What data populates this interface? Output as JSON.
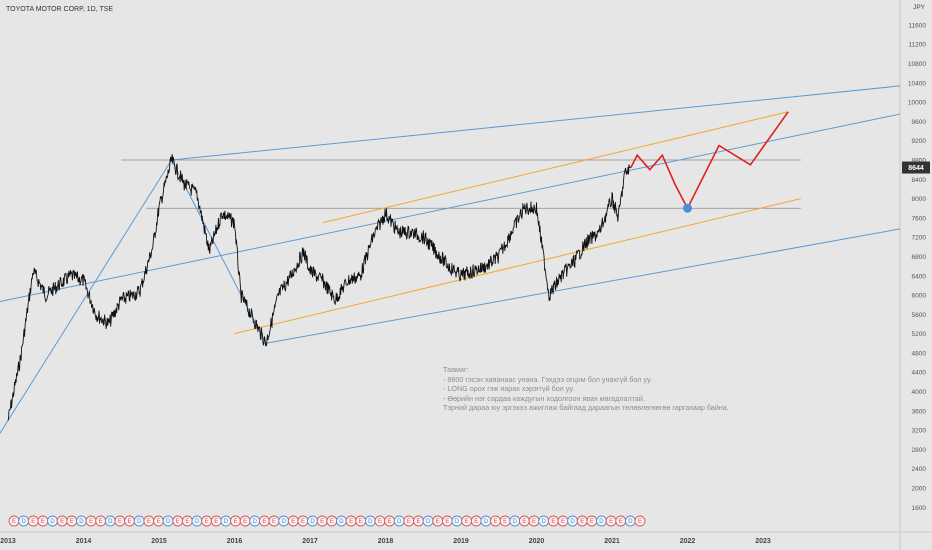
{
  "header": {
    "symbol_title": "TOYOTA MOTOR CORP, 1D, TSE",
    "currency": "JPY"
  },
  "chart_data": {
    "type": "line",
    "title": "TOYOTA MOTOR CORP, 1D, TSE",
    "ylabel": "JPY",
    "ylim": [
      1500,
      11800
    ],
    "y_ticks": [
      1600,
      2000,
      2400,
      2800,
      3200,
      3600,
      4000,
      4400,
      4800,
      5200,
      5600,
      6000,
      6400,
      6800,
      7200,
      7600,
      8000,
      8400,
      8800,
      9200,
      9600,
      10000,
      10400,
      10800,
      11200,
      11600
    ],
    "x_ticks": [
      "2013",
      "2014",
      "2015",
      "2016",
      "2017",
      "2018",
      "2019",
      "2020",
      "2021",
      "2022",
      "2023"
    ],
    "current_price": "8644",
    "series": [
      {
        "values": [
          [
            "2013-01",
            3400
          ],
          [
            "2013-03",
            4700
          ],
          [
            "2013-05",
            6500
          ],
          [
            "2013-07",
            6000
          ],
          [
            "2013-09",
            6200
          ],
          [
            "2013-11",
            6400
          ],
          [
            "2014-01",
            6300
          ],
          [
            "2014-03",
            5600
          ],
          [
            "2014-05",
            5400
          ],
          [
            "2014-07",
            5900
          ],
          [
            "2014-09",
            6000
          ],
          [
            "2014-10",
            6100
          ],
          [
            "2014-12",
            7000
          ],
          [
            "2015-01",
            7800
          ],
          [
            "2015-03",
            8800
          ],
          [
            "2015-05",
            8300
          ],
          [
            "2015-07",
            8100
          ],
          [
            "2015-09",
            6900
          ],
          [
            "2015-11",
            7700
          ],
          [
            "2016-01",
            7500
          ],
          [
            "2016-02",
            6000
          ],
          [
            "2016-04",
            5500
          ],
          [
            "2016-06",
            5000
          ],
          [
            "2016-08",
            6000
          ],
          [
            "2016-10",
            6400
          ],
          [
            "2016-12",
            6900
          ],
          [
            "2017-01",
            6500
          ],
          [
            "2017-03",
            6300
          ],
          [
            "2017-05",
            5900
          ],
          [
            "2017-07",
            6300
          ],
          [
            "2017-09",
            6400
          ],
          [
            "2017-11",
            7200
          ],
          [
            "2018-01",
            7700
          ],
          [
            "2018-03",
            7300
          ],
          [
            "2018-05",
            7300
          ],
          [
            "2018-07",
            7200
          ],
          [
            "2018-09",
            6900
          ],
          [
            "2018-11",
            6600
          ],
          [
            "2019-01",
            6400
          ],
          [
            "2019-03",
            6500
          ],
          [
            "2019-05",
            6600
          ],
          [
            "2019-07",
            6800
          ],
          [
            "2019-09",
            7300
          ],
          [
            "2019-11",
            7800
          ],
          [
            "2020-01",
            7800
          ],
          [
            "2020-03",
            6000
          ],
          [
            "2020-05",
            6400
          ],
          [
            "2020-07",
            6700
          ],
          [
            "2020-09",
            7100
          ],
          [
            "2020-11",
            7300
          ],
          [
            "2021-01",
            8000
          ],
          [
            "2021-02",
            7600
          ],
          [
            "2021-03",
            8500
          ],
          [
            "2021-04",
            8644
          ]
        ]
      }
    ],
    "projection_path": [
      [
        "2021-04",
        8644
      ],
      [
        "2021-05",
        8900
      ],
      [
        "2021-07",
        8600
      ],
      [
        "2021-09",
        8900
      ],
      [
        "2021-11",
        8300
      ],
      [
        "2022-01",
        7800
      ],
      [
        "2022-06",
        9100
      ],
      [
        "2022-11",
        8700
      ],
      [
        "2023-05",
        9800
      ]
    ],
    "target_point": [
      "2022-01",
      7800
    ],
    "horizontal_levels": [
      8800,
      7800
    ],
    "event_markers": {
      "labels": [
        "E",
        "D",
        "E",
        "E",
        "D",
        "E",
        "E",
        "D",
        "E",
        "E",
        "D",
        "E",
        "E",
        "D",
        "E",
        "E",
        "D",
        "E",
        "E",
        "D",
        "E",
        "E",
        "D",
        "E",
        "E",
        "D",
        "E",
        "E",
        "D",
        "E",
        "E",
        "D",
        "E",
        "E",
        "D",
        "E",
        "E",
        "D",
        "E",
        "E",
        "D",
        "E",
        "E",
        "D",
        "E",
        "E",
        "D",
        "E",
        "E",
        "D",
        "E",
        "E",
        "D",
        "E",
        "E",
        "D",
        "E",
        "E",
        "D",
        "E",
        "E",
        "D",
        "E",
        "E",
        "D",
        "E"
      ]
    },
    "annotation_lines": [
      "Таамаг:",
      "- 8800 гэсэн хаяанаас унана. Гэхдээ огцом бол унахгүй бол уу.",
      "- LONG орох гэж яарах хэрэггүй бол уу.",
      "- Өөрийн нэг сардаа каждугын ходолгоон явах магадлалтай.",
      "Тэрний дараа юу эргэхээ ажиглаж байгаад дараагын төлөвлөгөөгөө гаргахаар байна."
    ],
    "colors": {
      "background": "#e6e6e6",
      "price": "#111111",
      "channel_blue": "#5b9bd5",
      "channel_orange": "#f5a623",
      "projection": "#e02020",
      "target_point": "#4a90d9",
      "price_tag": "#333333",
      "event_earnings": "#e05050",
      "event_dividend": "#4a90d9",
      "note_text": "#8e8e8e"
    }
  }
}
